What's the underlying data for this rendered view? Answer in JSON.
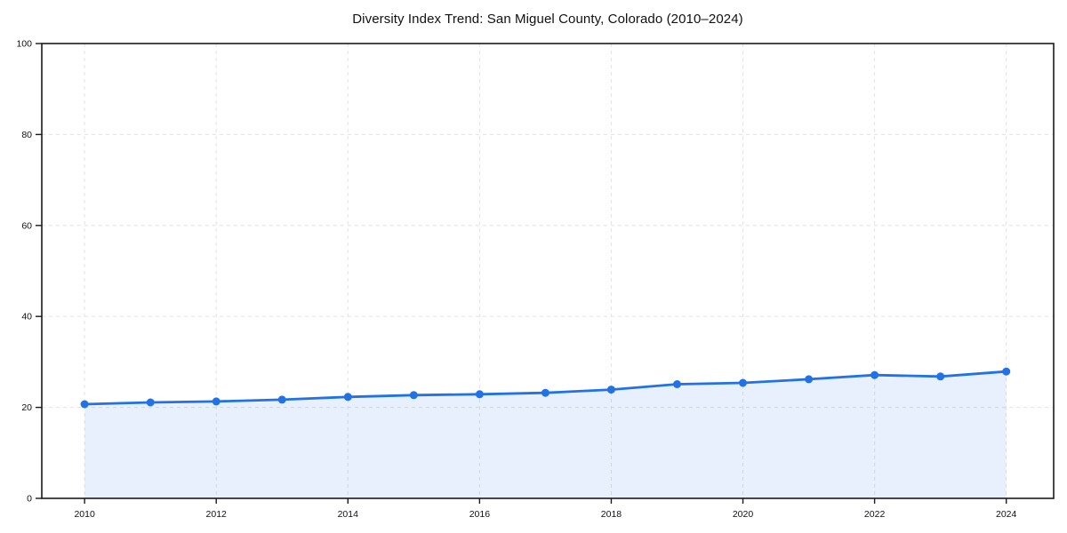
{
  "page": {
    "background": "#ffffff"
  },
  "chart_data": {
    "type": "area",
    "title": "Diversity Index Trend: San Miguel County, Colorado (2010–2024)",
    "xlabel": "",
    "ylabel": "",
    "x": [
      2010,
      2011,
      2012,
      2013,
      2014,
      2015,
      2016,
      2017,
      2018,
      2019,
      2020,
      2021,
      2022,
      2023,
      2024
    ],
    "series": [
      {
        "name": "Diversity Index",
        "values": [
          20.7,
          21.1,
          21.3,
          21.7,
          22.3,
          22.7,
          22.9,
          23.2,
          23.9,
          25.1,
          25.4,
          26.2,
          27.1,
          26.8,
          27.9
        ]
      }
    ],
    "xlim": [
      2009.35,
      2024.72
    ],
    "ylim": [
      0,
      100
    ],
    "xticks": [
      2010,
      2012,
      2014,
      2016,
      2018,
      2020,
      2022,
      2024
    ],
    "yticks": [
      0,
      20,
      40,
      60,
      80,
      100
    ],
    "grid": true,
    "grid_style": "dashed",
    "legend": "none",
    "marker": "circle",
    "colors": {
      "line": "#2272e6",
      "marker": "#2272e6",
      "fill": "rgba(34,114,230,0.11)",
      "grid": "#e3e3e3",
      "spine": "#1a1a1a",
      "tick_text": "#111111",
      "background": "#ffffff"
    }
  }
}
